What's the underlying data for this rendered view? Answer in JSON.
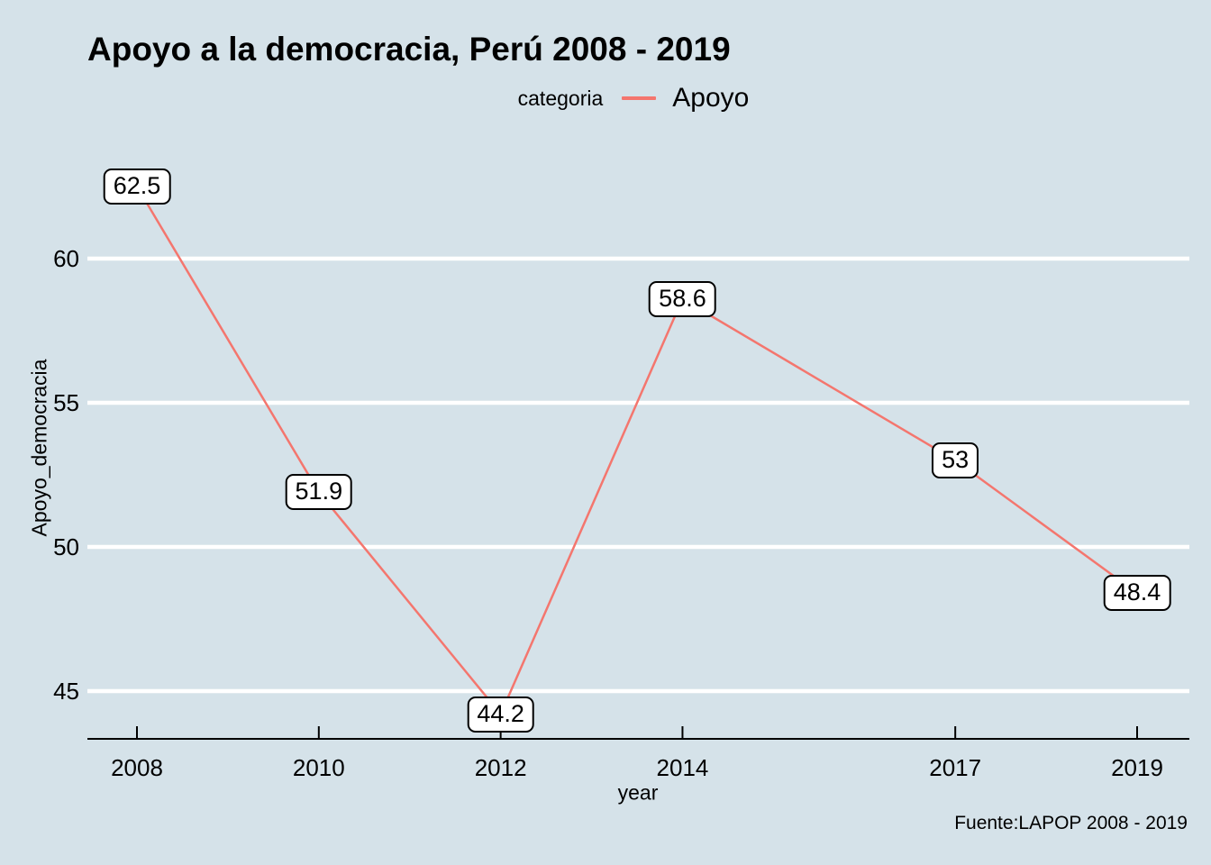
{
  "title": "Apoyo a la democracia, Perú 2008 - 2019",
  "legend": {
    "title": "categoria",
    "entries": [
      {
        "label": "Apoyo",
        "color": "#F4766E"
      }
    ]
  },
  "caption": "Fuente:LAPOP 2008 - 2019",
  "colors": {
    "background": "#D5E2E9",
    "grid": "#FFFFFF",
    "axis": "#000000",
    "line": "#F4766E",
    "label_box_bg": "#FFFFFF",
    "label_box_border": "#000000"
  },
  "chart_data": {
    "type": "line",
    "title": "Apoyo a la democracia, Perú 2008 - 2019",
    "xlabel": "year",
    "ylabel": "Apoyo_democracia",
    "x": [
      2008,
      2010,
      2012,
      2014,
      2017,
      2019
    ],
    "series": [
      {
        "name": "Apoyo",
        "color": "#F4766E",
        "values": [
          62.5,
          51.9,
          44.2,
          58.6,
          53,
          48.4
        ]
      }
    ],
    "point_labels": [
      "62.5",
      "51.9",
      "44.2",
      "58.6",
      "53",
      "48.4"
    ],
    "xticks": [
      2008,
      2010,
      2012,
      2014,
      2017,
      2019
    ],
    "xtick_labels": [
      "2008",
      "2010",
      "2012",
      "2014",
      "2017",
      "2019"
    ],
    "yticks": [
      45,
      50,
      55,
      60
    ],
    "ytick_labels": [
      "45",
      "50",
      "55",
      "60"
    ],
    "xlim": [
      2007.45,
      2019.55
    ],
    "ylim": [
      43.3,
      64.0
    ],
    "grid": "horizontal-major-white",
    "legend_position": "top-center",
    "legend_title": "categoria",
    "source": "Fuente:LAPOP 2008 - 2019"
  }
}
